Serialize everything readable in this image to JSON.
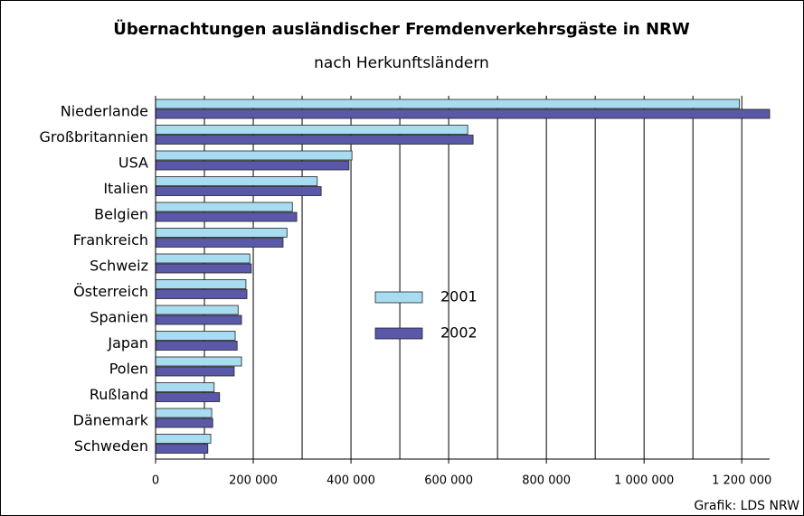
{
  "chart_data": {
    "type": "barh",
    "title": "Übernachtungen ausländischer Fremdenverkehrsgäste in NRW",
    "subtitle": "nach Herkunftsländern",
    "source": "Grafik: LDS NRW",
    "categories": [
      "Niederlande",
      "Großbritannien",
      "USA",
      "Italien",
      "Belgien",
      "Frankreich",
      "Schweiz",
      "Österreich",
      "Spanien",
      "Japan",
      "Polen",
      "Rußland",
      "Dänemark",
      "Schweden"
    ],
    "series": [
      {
        "name": "2001",
        "color": "#a8dcf0",
        "values": [
          1195000,
          639000,
          402000,
          331000,
          280000,
          269000,
          193000,
          185000,
          169000,
          163000,
          176000,
          120000,
          115000,
          113000
        ]
      },
      {
        "name": "2002",
        "color": "#5a58a8",
        "values": [
          1257000,
          650000,
          396000,
          339000,
          289000,
          261000,
          196000,
          187000,
          176000,
          167000,
          161000,
          131000,
          117000,
          107000
        ]
      }
    ],
    "xlim": [
      0,
      1257000
    ],
    "xticks": [
      0,
      {
        "value": 200000,
        "label": "200 000"
      },
      {
        "value": 400000,
        "label": "400 000"
      },
      {
        "value": 600000,
        "label": "600 000"
      },
      {
        "value": 800000,
        "label": "800 000"
      },
      {
        "value": 1000000,
        "label": "1 000 000"
      },
      {
        "value": 1200000,
        "label": "1 200 000"
      }
    ],
    "grid_lines": [
      100000,
      200000,
      300000,
      400000,
      500000,
      600000,
      700000,
      800000,
      900000,
      1000000,
      1100000,
      1200000
    ],
    "grid": true
  }
}
